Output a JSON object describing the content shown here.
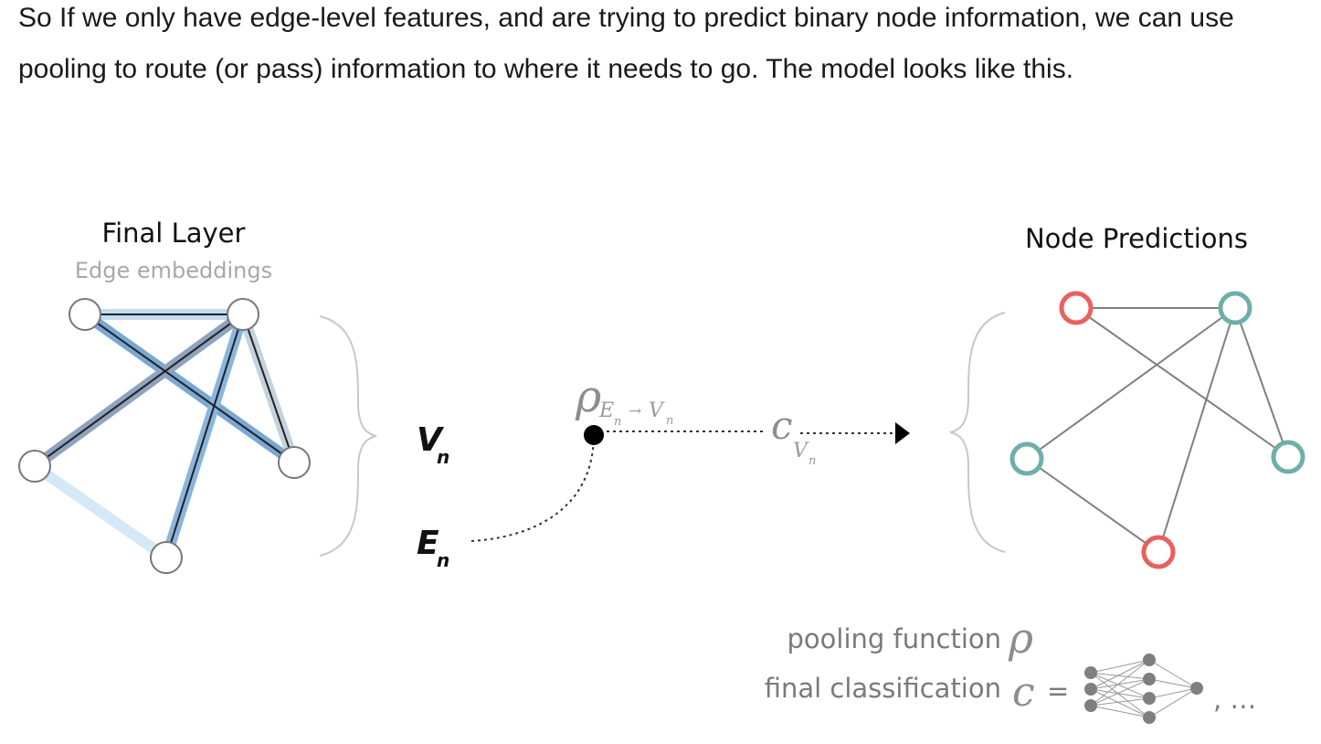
{
  "paragraph": "So If we only have edge-level features, and are trying to predict binary node information, we can use pooling to route (or pass) information to where it needs to go. The model looks like this.",
  "diagram": {
    "left": {
      "title": "Final Layer",
      "subtitle": "Edge embeddings"
    },
    "right": {
      "title": "Node Predictions",
      "node_classes": [
        "red",
        "teal",
        "teal",
        "teal",
        "red"
      ]
    },
    "labels": {
      "v": "V",
      "v_sub": "n",
      "e": "E",
      "e_sub": "n",
      "rho": "ρ",
      "rho_sub_from": "E",
      "rho_sub_from_sub": "n",
      "rho_arrow": "→",
      "rho_sub_to": "V",
      "rho_sub_to_sub": "n",
      "c": "c",
      "c_sub": "V",
      "c_sub_sub": "n"
    },
    "legend": {
      "pooling_label": "pooling function",
      "pooling_symbol": "ρ",
      "classification_label": "final classification",
      "classification_symbol": "c",
      "equals": "=",
      "ellipsis": ", …"
    },
    "colors": {
      "red": "#e8615f",
      "teal": "#6fafaa",
      "edge_gray": "#808080"
    }
  }
}
